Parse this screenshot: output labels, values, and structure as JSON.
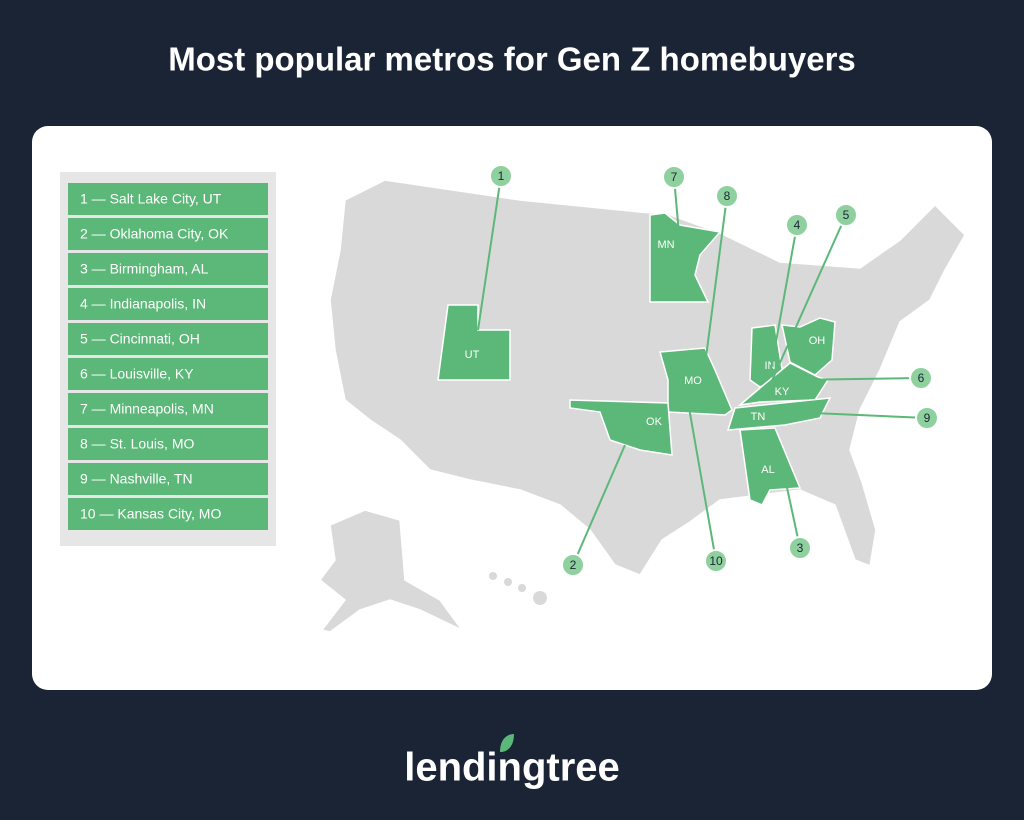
{
  "title": "Most popular metros for Gen Z homebuyers",
  "ranking": [
    "1 — Salt Lake City, UT",
    "2 — Oklahoma City, OK",
    "3 — Birmingham, AL",
    "4 — Indianapolis, IN",
    "5 — Cincinnati, OH",
    "6 — Louisville, KY",
    "7 — Minneapolis, MN",
    "8 — St. Louis, MO",
    "9 — Nashville, TN",
    "10 — Kansas City, MO"
  ],
  "states": [
    "UT",
    "MN",
    "MO",
    "OK",
    "IN",
    "OH",
    "KY",
    "TN",
    "AL"
  ],
  "callouts": [
    1,
    2,
    3,
    4,
    5,
    6,
    7,
    8,
    9,
    10
  ],
  "logo": "lendingtree"
}
